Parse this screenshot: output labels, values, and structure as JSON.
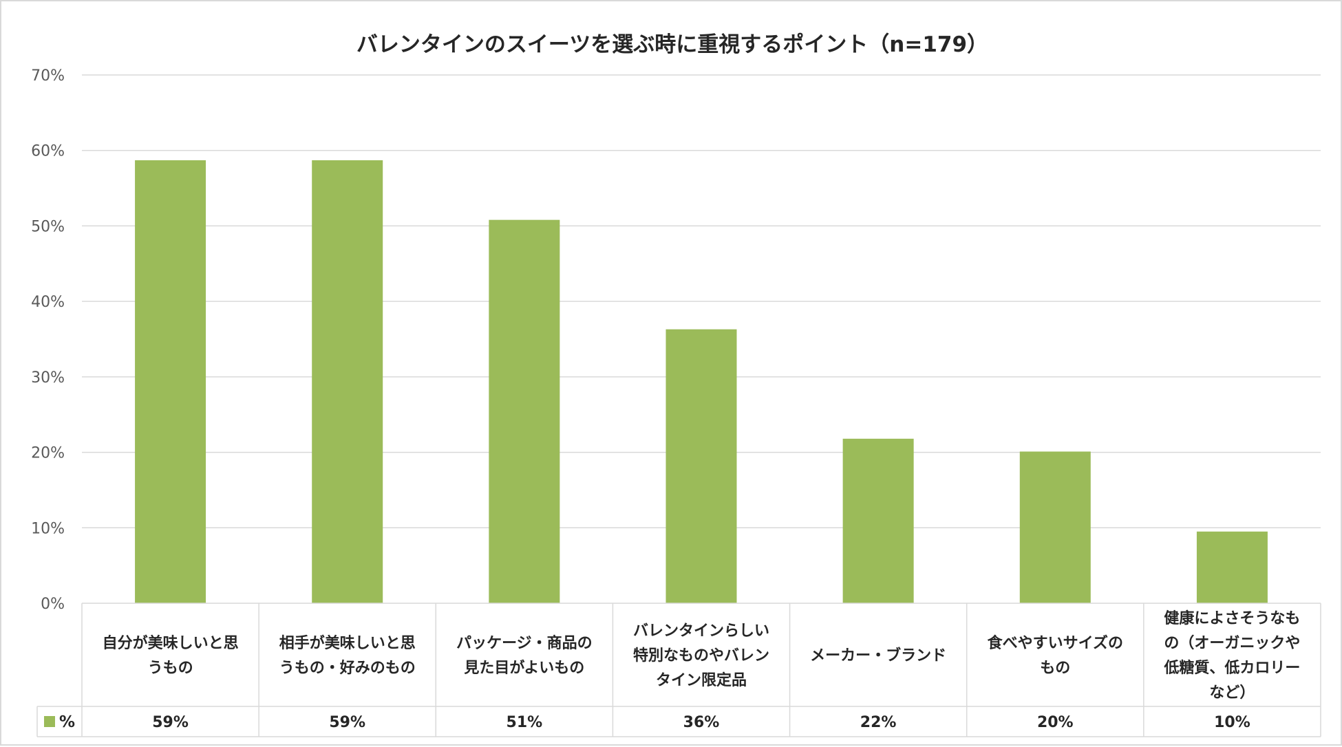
{
  "chart_data": {
    "type": "bar",
    "title": "バレンタインのスイーツを選ぶ時に重視するポイント（n=179）",
    "categories": [
      [
        "自分が美味しいと思",
        "うもの"
      ],
      [
        "相手が美味しいと思",
        "うもの・好みのもの"
      ],
      [
        "パッケージ・商品の",
        "見た目がよいもの"
      ],
      [
        "バレンタインらしい",
        "特別なものやバレン",
        "タイン限定品"
      ],
      [
        "メーカー・ブランド"
      ],
      [
        "食べやすいサイズの",
        "もの"
      ],
      [
        "健康によさそうなも",
        "の（オーガニックや",
        "低糖質、低カロリー",
        "など）"
      ]
    ],
    "series": [
      {
        "name": "%",
        "values": [
          58.7,
          58.7,
          50.8,
          36.3,
          21.8,
          20.1,
          9.5
        ],
        "labels": [
          "59%",
          "59%",
          "51%",
          "36%",
          "22%",
          "20%",
          "10%"
        ],
        "color": "#9bbb59"
      }
    ],
    "ylim": [
      0,
      70
    ],
    "yticks": [
      "0%",
      "10%",
      "20%",
      "30%",
      "40%",
      "50%",
      "60%",
      "70%"
    ],
    "grid": true,
    "legend": "data-table",
    "xlabel": "",
    "ylabel": ""
  },
  "colors": {
    "bar": "#9bbb59",
    "grid": "#d9d9d9",
    "table_border": "#d9d9d9"
  }
}
